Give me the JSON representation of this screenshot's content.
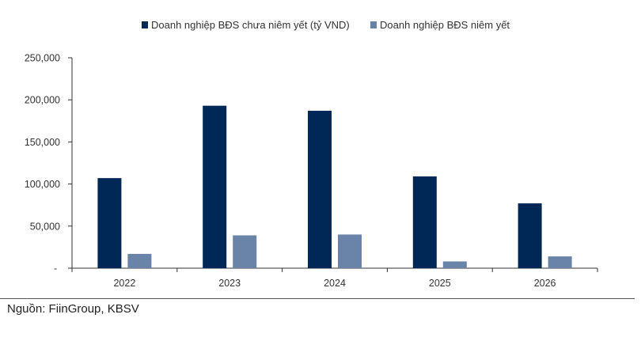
{
  "chart_data": {
    "type": "bar",
    "categories": [
      "2022",
      "2023",
      "2024",
      "2025",
      "2026"
    ],
    "series": [
      {
        "name": "Doanh nghiệp BĐS chưa niêm yết (tỷ VND)",
        "color": "#002856",
        "values": [
          107000,
          193000,
          187000,
          109000,
          77000
        ]
      },
      {
        "name": "Doanh nghiệp BĐS niêm yết",
        "color": "#6a83a8",
        "values": [
          17000,
          39000,
          40000,
          8000,
          14000
        ]
      }
    ],
    "ylim": [
      0,
      250000
    ],
    "yticks": [
      0,
      50000,
      100000,
      150000,
      200000,
      250000
    ],
    "ytick_labels": [
      "-",
      "50,000",
      "100,000",
      "150,000",
      "200,000",
      "250,000"
    ],
    "legend": "top",
    "grid": false,
    "title": "",
    "xlabel": "",
    "ylabel": ""
  },
  "source": "Nguồn: FiinGroup, KBSV"
}
